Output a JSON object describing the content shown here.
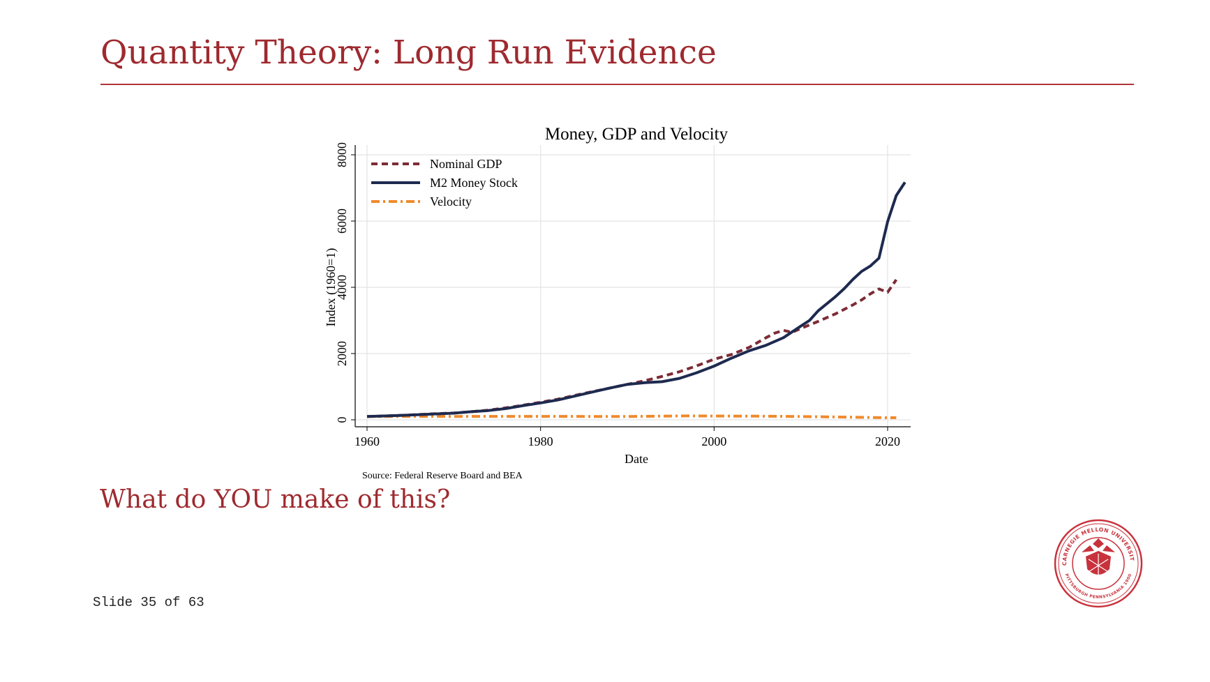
{
  "slide": {
    "title": "Quantity Theory: Long Run Evidence",
    "question": "What do YOU make of this?",
    "counter": "Slide 35 of 63"
  },
  "seal": {
    "top_text": "CARNEGIE MELLON UNIVERSITY",
    "bottom_text": "PITTSBURGH PENNSYLVANIA 1900"
  },
  "colors": {
    "accent": "#9e2a2f",
    "gdp": "#7d2b35",
    "m2": "#1e2a4f",
    "velocity": "#f08a2c"
  },
  "chart_data": {
    "type": "line",
    "title": "Money, GDP and Velocity",
    "xlabel": "Date",
    "ylabel": "Index (1960=1)",
    "source": "Source: Federal Reserve Board and BEA",
    "xlim": [
      1960,
      2023
    ],
    "ylim": [
      0,
      8000
    ],
    "xticks": [
      1960,
      1980,
      2000,
      2020
    ],
    "yticks": [
      0,
      2000,
      4000,
      6000,
      8000
    ],
    "grid": true,
    "legend_position": "top-left",
    "series": [
      {
        "name": "Nominal GDP",
        "style": "dashed",
        "color": "#7d2b35",
        "x": [
          1960,
          1962,
          1964,
          1966,
          1968,
          1970,
          1972,
          1974,
          1976,
          1978,
          1980,
          1982,
          1984,
          1986,
          1988,
          1990,
          1992,
          1994,
          1996,
          1998,
          2000,
          2002,
          2004,
          2006,
          2007,
          2008,
          2009,
          2010,
          2012,
          2014,
          2016,
          2017,
          2018,
          2019,
          2020,
          2021
        ],
        "y": [
          100,
          115,
          135,
          160,
          185,
          205,
          245,
          290,
          360,
          440,
          530,
          620,
          740,
          850,
          960,
          1070,
          1180,
          1310,
          1450,
          1630,
          1830,
          1970,
          2180,
          2480,
          2620,
          2700,
          2640,
          2760,
          2970,
          3200,
          3470,
          3620,
          3800,
          3950,
          3850,
          4230
        ]
      },
      {
        "name": "M2 Money Stock",
        "style": "solid",
        "color": "#1e2a4f",
        "x": [
          1960,
          1962,
          1964,
          1966,
          1968,
          1970,
          1972,
          1974,
          1976,
          1978,
          1980,
          1982,
          1984,
          1986,
          1988,
          1990,
          1992,
          1994,
          1996,
          1998,
          2000,
          2002,
          2004,
          2006,
          2008,
          2010,
          2011,
          2012,
          2014,
          2015,
          2016,
          2017,
          2018,
          2019,
          2020,
          2021,
          2022
        ],
        "y": [
          100,
          115,
          135,
          155,
          180,
          200,
          245,
          280,
          340,
          430,
          510,
          600,
          720,
          840,
          960,
          1070,
          1120,
          1150,
          1250,
          1420,
          1620,
          1860,
          2080,
          2250,
          2480,
          2830,
          3000,
          3290,
          3720,
          3960,
          4240,
          4480,
          4640,
          4880,
          5980,
          6770,
          7170
        ]
      },
      {
        "name": "Velocity",
        "style": "dash-dot",
        "color": "#f08a2c",
        "x": [
          1960,
          1965,
          1970,
          1975,
          1980,
          1985,
          1990,
          1995,
          1997,
          2000,
          2005,
          2010,
          2015,
          2020,
          2021
        ],
        "y": [
          100,
          103,
          102,
          104,
          104,
          101,
          100,
          114,
          118,
          113,
          110,
          98,
          82,
          64,
          63
        ]
      }
    ]
  }
}
